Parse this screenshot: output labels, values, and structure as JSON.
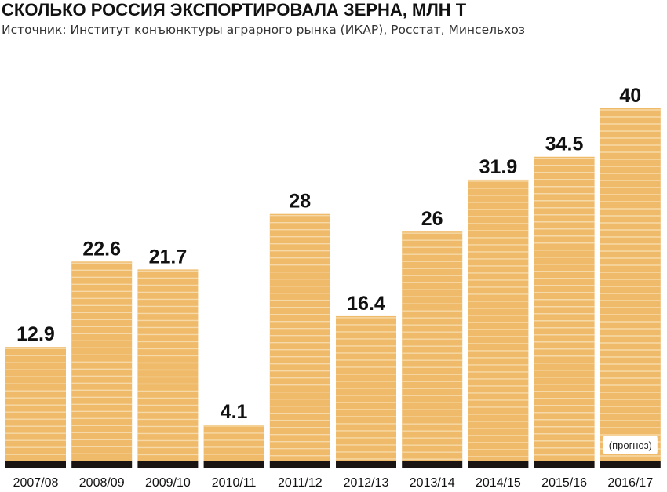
{
  "colors": {
    "bar": "#efbb6a",
    "bar_line": "#f6d9a8",
    "base": "#1a1512",
    "note_bg": "#ffffff"
  },
  "chart_data": {
    "type": "bar",
    "title": "СКОЛЬКО РОССИЯ ЭКСПОРТИРОВАЛА ЗЕРНА, МЛН Т",
    "subtitle": "Источник: Институт конъюнктуры аграрного рынка (ИКАР), Росстат, Минсельхоз",
    "xlabel": "",
    "ylabel": "",
    "ylim": [
      0,
      40
    ],
    "grid": false,
    "categories": [
      "2007/08",
      "2008/09",
      "2009/10",
      "2010/11",
      "2011/12",
      "2012/13",
      "2013/14",
      "2014/15",
      "2015/16",
      "2016/17"
    ],
    "values": [
      12.9,
      22.6,
      21.7,
      4.1,
      28,
      16.4,
      26,
      31.9,
      34.5,
      40
    ],
    "value_labels": [
      "12.9",
      "22.6",
      "21.7",
      "4.1",
      "28",
      "16.4",
      "26",
      "31.9",
      "34.5",
      "40"
    ],
    "annotations": [
      {
        "category": "2016/17",
        "text": "(прогноз)"
      }
    ]
  }
}
